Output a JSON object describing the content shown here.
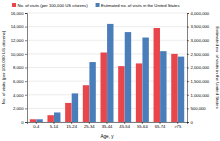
{
  "chart_data": {
    "type": "bar",
    "x_label": "Age, y",
    "y_label": "No. of visits (per 100,000 US citizens)",
    "y2_label": "Estimated no. of visits in the United States",
    "categories": [
      "0-4",
      "5-14",
      "15-24",
      "25-34",
      "35-44",
      "45-54",
      "55-64",
      "65-74",
      ">75"
    ],
    "series": [
      {
        "name": "No. of visits (per 100,000 US citizens)",
        "color": "#e8464b",
        "values": [
          400,
          1000,
          2800,
          5400,
          10200,
          8200,
          8600,
          13800,
          10000
        ]
      },
      {
        "name": "Estimated no. of visits in the United States",
        "color": "#4a7ebb",
        "axis": "y2",
        "values": [
          100000,
          350000,
          1050000,
          2200000,
          3600000,
          3300000,
          3100000,
          2600000,
          2400000
        ]
      }
    ],
    "ylim": [
      0,
      16000
    ],
    "yticks": [
      0,
      {
        "value": 2000,
        "label": "2,000"
      },
      {
        "value": 4000,
        "label": "4,000"
      },
      {
        "value": 6000,
        "label": "6,000"
      },
      {
        "value": 8000,
        "label": "8,000"
      },
      {
        "value": 10000,
        "label": "10,000"
      },
      {
        "value": 12000,
        "label": "12,000"
      },
      {
        "value": 14000,
        "label": "14,000"
      },
      {
        "value": 16000,
        "label": "16,000"
      }
    ],
    "y2lim": [
      0,
      4000000
    ],
    "y2ticks": [
      0,
      {
        "value": 500000,
        "label": "500,000"
      },
      {
        "value": 1000000,
        "label": "1,000,000"
      },
      {
        "value": 1500000,
        "label": "1,500,000"
      },
      {
        "value": 2000000,
        "label": "2,000,000"
      },
      {
        "value": 2500000,
        "label": "2,500,000"
      },
      {
        "value": 3000000,
        "label": "3,000,000"
      },
      {
        "value": 3500000,
        "label": "3,500,000"
      },
      {
        "value": 4000000,
        "label": "4,000,000"
      }
    ],
    "grid": true,
    "legend": "top"
  }
}
